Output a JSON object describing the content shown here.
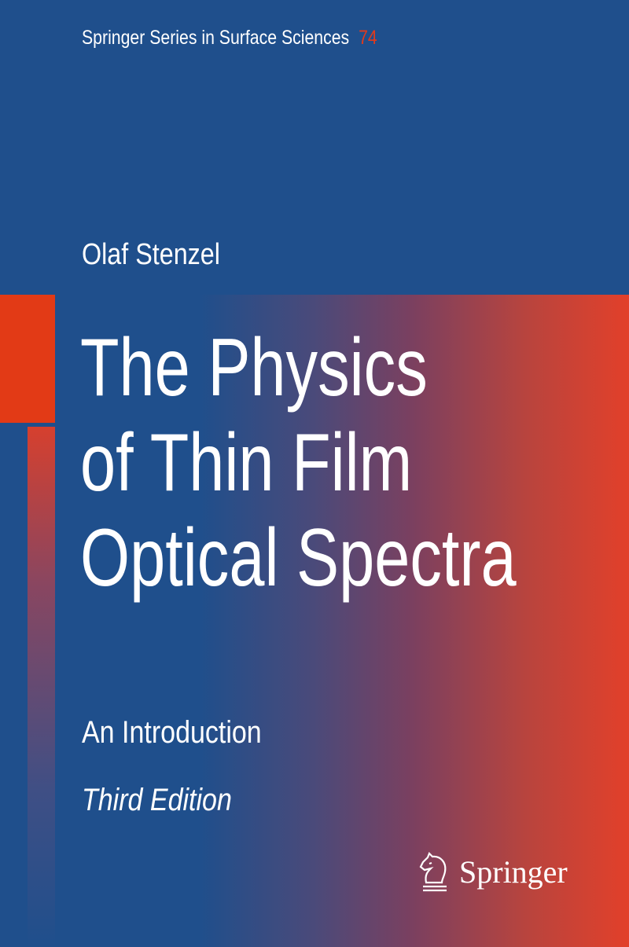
{
  "series": {
    "name": "Springer Series in Surface Sciences",
    "number": "74"
  },
  "author": "Olaf Stenzel",
  "title_lines": [
    "The Physics",
    "of Thin Film",
    "Optical Spectra"
  ],
  "subtitle": "An Introduction",
  "edition": "Third Edition",
  "publisher": {
    "name": "Springer",
    "logo_icon": "knight-horse-icon"
  },
  "colors": {
    "blue": "#1f4f8c",
    "orange": "#e23a16",
    "accent_number": "#e23a1c"
  }
}
